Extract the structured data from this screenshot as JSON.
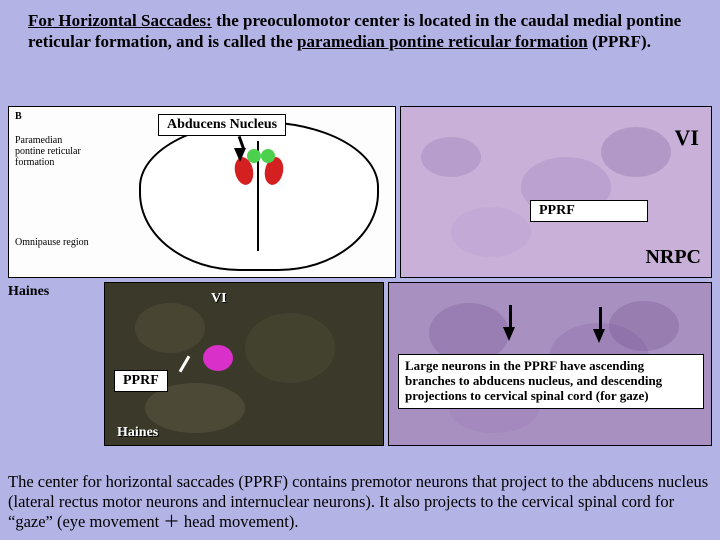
{
  "header": {
    "text_parts": {
      "p1": "For Horizontal Saccades:",
      "p2": " the preoculomotor center is located in the caudal medial pontine reticular formation, and is called the ",
      "p3": "paramedian pontine reticular formation",
      "p4": " (PPRF)."
    }
  },
  "diagram1": {
    "title": "B",
    "label_pprf": "Paramedian\npontine reticular\nformation",
    "label_omni": "Omnipause region",
    "colors": {
      "red": "#d42020",
      "green": "#4dd04d",
      "outline": "#000000"
    }
  },
  "labels": {
    "abducens_nucleus": "Abducens Nucleus",
    "pprf": "PPRF",
    "vi": "VI",
    "nrpc": "NRPC",
    "haines": "Haines"
  },
  "info_box": "Large neurons in the PPRF have ascending branches to abducens nucleus, and descending projections to cervical spinal cord (for gaze)",
  "footer": "The center for horizontal saccades (PPRF) contains premotor neurons that project to the abducens nucleus (lateral rectus motor neurons and internuclear neurons). It also projects to the cervical spinal cord for “gaze”  (eye movement ＋ head movement).",
  "histology": {
    "bg1": "#c8b0d8",
    "bg2": "#3b3a2a",
    "bg3": "#a890c0",
    "mottles1": [
      {
        "l": 20,
        "t": 30,
        "w": 60,
        "h": 40,
        "c": "#8a6aa8"
      },
      {
        "l": 120,
        "t": 50,
        "w": 90,
        "h": 60,
        "c": "#9a7ab8"
      },
      {
        "l": 200,
        "t": 20,
        "w": 70,
        "h": 50,
        "c": "#7a5a98"
      },
      {
        "l": 50,
        "t": 100,
        "w": 80,
        "h": 50,
        "c": "#b89ad0"
      }
    ],
    "mottles2": [
      {
        "l": 30,
        "t": 20,
        "w": 70,
        "h": 50,
        "c": "#6a684a"
      },
      {
        "l": 140,
        "t": 30,
        "w": 90,
        "h": 70,
        "c": "#5a5838"
      },
      {
        "l": 40,
        "t": 100,
        "w": 100,
        "h": 50,
        "c": "#7a7858"
      }
    ],
    "mottles3": [
      {
        "l": 40,
        "t": 20,
        "w": 80,
        "h": 60,
        "c": "#705090"
      },
      {
        "l": 160,
        "t": 40,
        "w": 100,
        "h": 70,
        "c": "#8060a0"
      },
      {
        "l": 60,
        "t": 100,
        "w": 90,
        "h": 50,
        "c": "#9878b8"
      },
      {
        "l": 220,
        "t": 18,
        "w": 70,
        "h": 50,
        "c": "#6a4a8a"
      }
    ]
  }
}
